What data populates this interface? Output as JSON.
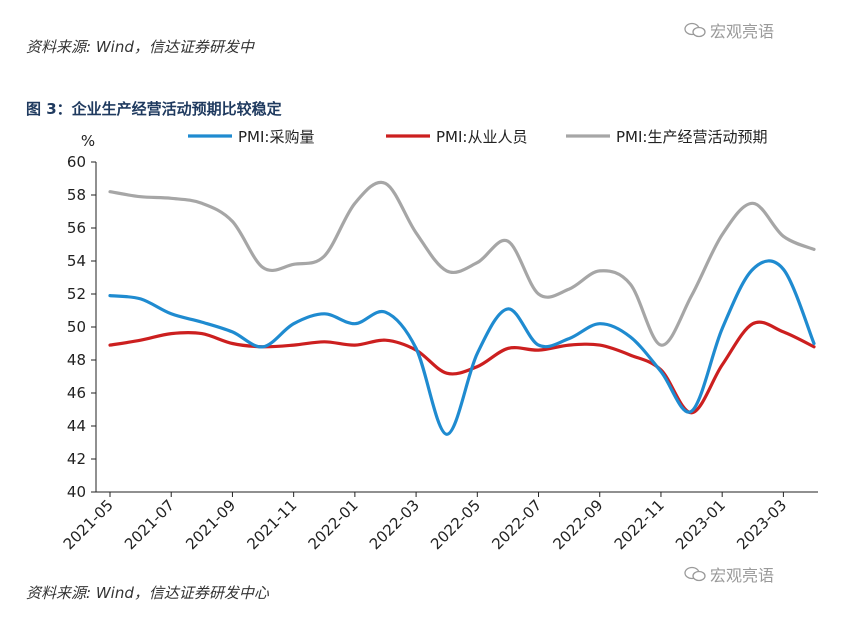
{
  "source_top": "资料来源: Wind，信达证券研发中",
  "source_bottom": "资料来源: Wind，信达证券研发中心",
  "watermark": "宏观亮语",
  "figure_title": "图 3：企业生产经营活动预期比较稳定",
  "chart_data": {
    "type": "line",
    "title": "",
    "ylabel": "%",
    "ylim": [
      40,
      60
    ],
    "yticks": [
      40,
      42,
      44,
      46,
      48,
      50,
      52,
      54,
      56,
      58,
      60
    ],
    "x": [
      "2021-05",
      "2021-06",
      "2021-07",
      "2021-08",
      "2021-09",
      "2021-10",
      "2021-11",
      "2021-12",
      "2022-01",
      "2022-02",
      "2022-03",
      "2022-04",
      "2022-05",
      "2022-06",
      "2022-07",
      "2022-08",
      "2022-09",
      "2022-10",
      "2022-11",
      "2022-12",
      "2023-01",
      "2023-02",
      "2023-03",
      "2023-04"
    ],
    "xtick_labels": [
      "2021-05",
      "2021-07",
      "2021-09",
      "2021-11",
      "2022-01",
      "2022-03",
      "2022-05",
      "2022-07",
      "2022-09",
      "2022-11",
      "2023-01",
      "2023-03"
    ],
    "legend_position": "top",
    "series": [
      {
        "name": "PMI:采购量",
        "color": "#1f8bd0",
        "values": [
          51.9,
          51.7,
          50.8,
          50.3,
          49.7,
          48.8,
          50.2,
          50.8,
          50.2,
          50.9,
          48.7,
          43.5,
          48.4,
          51.1,
          48.9,
          49.3,
          50.2,
          49.4,
          47.3,
          44.9,
          49.9,
          53.5,
          53.5,
          49.0
        ]
      },
      {
        "name": "PMI:从业人员",
        "color": "#cc1f1f",
        "values": [
          48.9,
          49.2,
          49.6,
          49.6,
          49.0,
          48.8,
          48.9,
          49.1,
          48.9,
          49.2,
          48.6,
          47.2,
          47.6,
          48.7,
          48.6,
          48.9,
          48.9,
          48.3,
          47.4,
          44.8,
          47.7,
          50.2,
          49.7,
          48.8
        ]
      },
      {
        "name": "PMI:生产经营活动预期",
        "color": "#a6a6a6",
        "values": [
          58.2,
          57.9,
          57.8,
          57.5,
          56.4,
          53.6,
          53.8,
          54.3,
          57.5,
          58.7,
          55.7,
          53.4,
          53.9,
          55.2,
          52.0,
          52.3,
          53.4,
          52.6,
          48.9,
          51.9,
          55.6,
          57.5,
          55.5,
          54.7
        ]
      }
    ]
  }
}
